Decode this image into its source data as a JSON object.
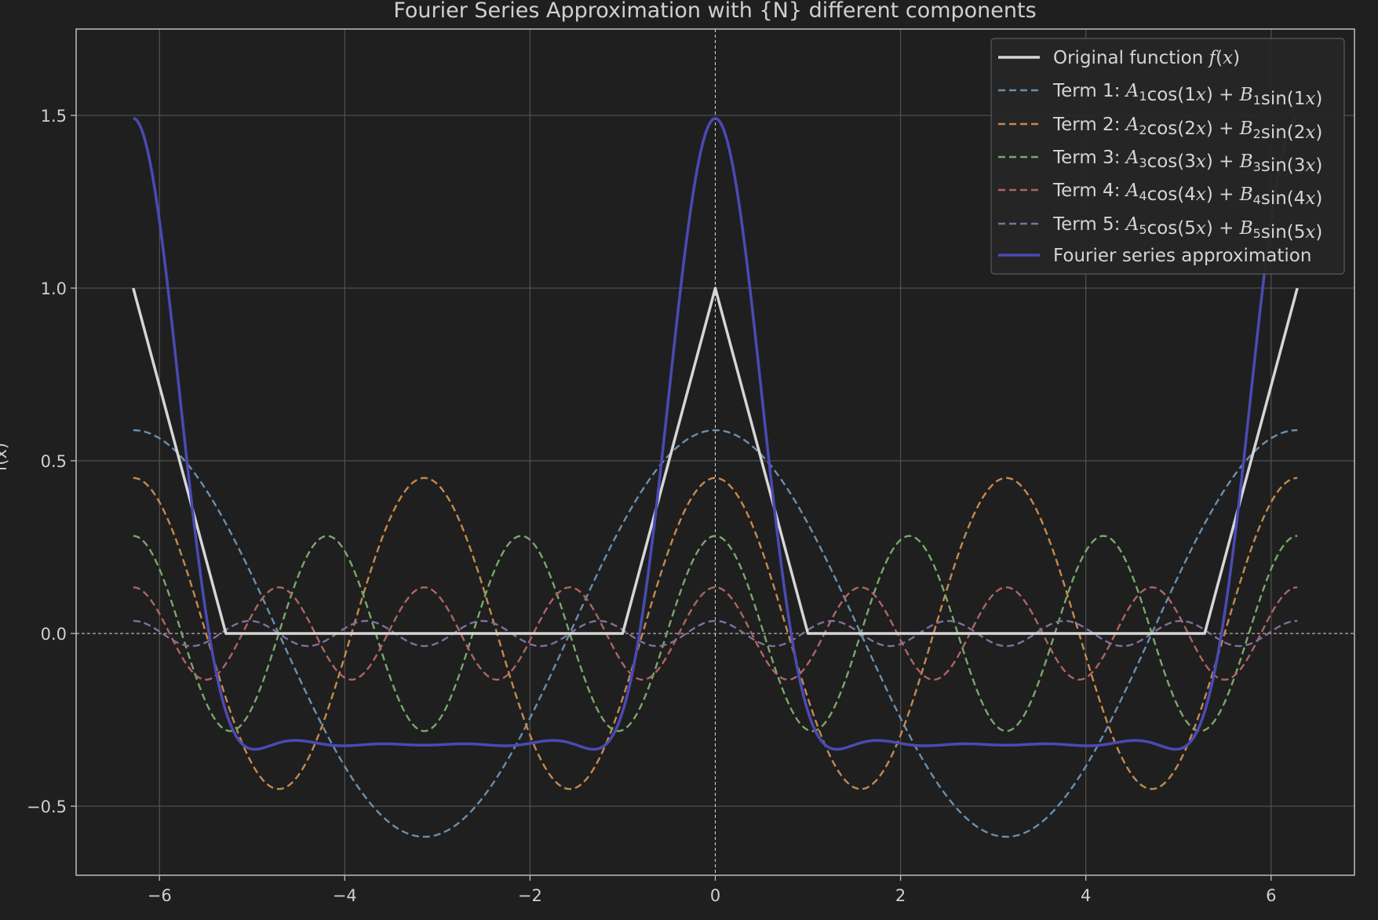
{
  "chart_data": {
    "type": "line",
    "title": "Fourier Series Approximation with {N} different components",
    "xlabel": "",
    "ylabel": "f(x)",
    "xlim": [
      -6.9,
      6.9
    ],
    "ylim": [
      -0.7,
      1.75
    ],
    "xticks": [
      -6,
      -4,
      -2,
      0,
      2,
      4,
      6
    ],
    "xtick_labels": [
      "−6",
      "−4",
      "−2",
      "0",
      "2",
      "4",
      "6"
    ],
    "yticks": [
      -0.5,
      0.0,
      0.5,
      1.0,
      1.5
    ],
    "ytick_labels": [
      "−0.5",
      "0.0",
      "0.5",
      "1.0",
      "1.5"
    ],
    "grid": true,
    "legend_position": "top-right",
    "x_range": [
      -6.283,
      6.283
    ],
    "series": [
      {
        "name": "Original function f(x)",
        "kind": "triangle",
        "color": "#d6d6d6",
        "dash": false,
        "width": 3.5,
        "base_width": 1,
        "peak": 1
      },
      {
        "name": "Term 1: A1cos(1x) + B1sin(1x)",
        "kind": "cos",
        "k": 1,
        "amp": 0.5886,
        "color": "#6a8fb0",
        "dash": true
      },
      {
        "name": "Term 2: A2cos(2x) + B2sin(2x)",
        "kind": "cos",
        "k": 2,
        "amp": 0.4503,
        "color": "#c58a4e",
        "dash": true
      },
      {
        "name": "Term 3: A3cos(3x) + B3sin(3x)",
        "kind": "cos",
        "k": 3,
        "amp": 0.2824,
        "color": "#79a86a",
        "dash": true
      },
      {
        "name": "Term 4: A4cos(4x) + B4sin(4x)",
        "kind": "cos",
        "k": 4,
        "amp": 0.1337,
        "color": "#b06464",
        "dash": true
      },
      {
        "name": "Term 5: A5cos(5x) + B5sin(5x)",
        "kind": "cos",
        "k": 5,
        "amp": 0.0364,
        "color": "#80709a",
        "dash": true
      },
      {
        "name": "Fourier series approximation",
        "kind": "sum",
        "color": "#4a4ab4",
        "dash": false,
        "width": 3.5
      }
    ]
  },
  "legend": [
    {
      "pre": "Original function ",
      "rich": [
        [
          "f",
          "i"
        ],
        [
          "(",
          ""
        ],
        [
          "x",
          "i"
        ],
        [
          ")",
          ""
        ]
      ]
    },
    {
      "pre": "Term 1: ",
      "rich": [
        [
          "A",
          "i"
        ],
        [
          "1",
          "s"
        ],
        [
          "cos(1",
          ""
        ],
        [
          "x",
          "i"
        ],
        [
          ") + ",
          ""
        ],
        [
          "B",
          "i"
        ],
        [
          "1",
          "s"
        ],
        [
          "sin(1",
          ""
        ],
        [
          "x",
          "i"
        ],
        [
          ")",
          ""
        ]
      ]
    },
    {
      "pre": "Term 2: ",
      "rich": [
        [
          "A",
          "i"
        ],
        [
          "2",
          "s"
        ],
        [
          "cos(2",
          ""
        ],
        [
          "x",
          "i"
        ],
        [
          ") + ",
          ""
        ],
        [
          "B",
          "i"
        ],
        [
          "2",
          "s"
        ],
        [
          "sin(2",
          ""
        ],
        [
          "x",
          "i"
        ],
        [
          ")",
          ""
        ]
      ]
    },
    {
      "pre": "Term 3: ",
      "rich": [
        [
          "A",
          "i"
        ],
        [
          "3",
          "s"
        ],
        [
          "cos(3",
          ""
        ],
        [
          "x",
          "i"
        ],
        [
          ") + ",
          ""
        ],
        [
          "B",
          "i"
        ],
        [
          "3",
          "s"
        ],
        [
          "sin(3",
          ""
        ],
        [
          "x",
          "i"
        ],
        [
          ")",
          ""
        ]
      ]
    },
    {
      "pre": "Term 4: ",
      "rich": [
        [
          "A",
          "i"
        ],
        [
          "4",
          "s"
        ],
        [
          "cos(4",
          ""
        ],
        [
          "x",
          "i"
        ],
        [
          ") + ",
          ""
        ],
        [
          "B",
          "i"
        ],
        [
          "4",
          "s"
        ],
        [
          "sin(4",
          ""
        ],
        [
          "x",
          "i"
        ],
        [
          ")",
          ""
        ]
      ]
    },
    {
      "pre": "Term 5: ",
      "rich": [
        [
          "A",
          "i"
        ],
        [
          "5",
          "s"
        ],
        [
          "cos(5",
          ""
        ],
        [
          "x",
          "i"
        ],
        [
          ") + ",
          ""
        ],
        [
          "B",
          "i"
        ],
        [
          "5",
          "s"
        ],
        [
          "sin(5",
          ""
        ],
        [
          "x",
          "i"
        ],
        [
          ")",
          ""
        ]
      ]
    },
    {
      "pre": "Fourier series approximation",
      "rich": []
    }
  ],
  "colors": {
    "background": "#1f1f1f",
    "grid": "#4e4e4e",
    "axes": "#bdbdbd",
    "zero_lines": "#d8d8d8"
  }
}
